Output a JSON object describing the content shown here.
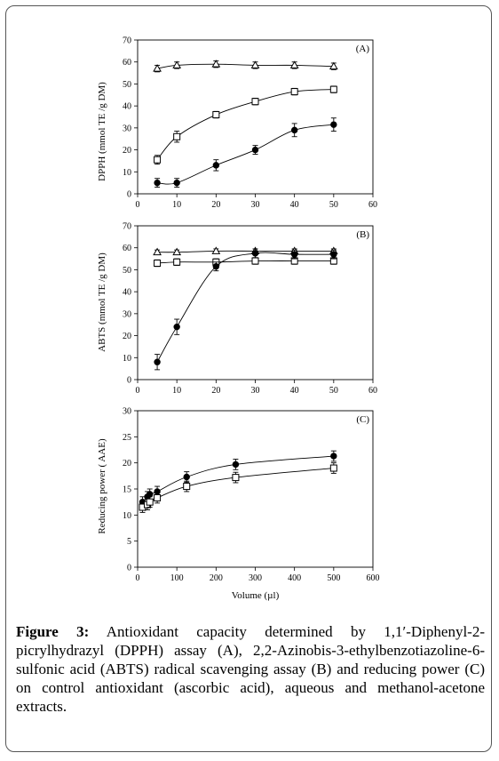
{
  "caption": {
    "label": "Figure 3:",
    "text": "Antioxidant capacity determined by 1,1′-Diphenyl-2-picrylhydrazyl (DPPH) assay (A), 2,2-Azinobis-3-ethylbenzotiazoline-6-sulfonic acid (ABTS) radical scavenging assay (B) and reducing power (C) on control antioxidant (ascorbic acid), aqueous and methanol-acetone extracts."
  },
  "chart_data": [
    {
      "type": "line",
      "panel_label": "(A)",
      "xlabel": "",
      "ylabel": "DPPH (mmol TE /g DM)",
      "xlim": [
        0,
        60
      ],
      "ylim": [
        0,
        70
      ],
      "xticks": [
        "0",
        "10",
        "20",
        "30",
        "40",
        "50",
        "60"
      ],
      "yticks": [
        "0",
        "10",
        "20",
        "30",
        "40",
        "50",
        "60",
        "70"
      ],
      "grid": false,
      "series": [
        {
          "marker": "triangle",
          "x": [
            5,
            10,
            20,
            30,
            40,
            50
          ],
          "y": [
            57,
            58.5,
            59,
            58.5,
            58.5,
            58
          ],
          "err": [
            1.5,
            1.5,
            1.5,
            1.5,
            1.5,
            1.5
          ]
        },
        {
          "marker": "square",
          "x": [
            5,
            10,
            20,
            30,
            40,
            50
          ],
          "y": [
            15.5,
            26,
            36,
            42,
            46.5,
            47.5
          ],
          "err": [
            2,
            2.5,
            1.5,
            1.5,
            1.5,
            1.5
          ]
        },
        {
          "marker": "circle",
          "x": [
            5,
            10,
            20,
            30,
            40,
            50
          ],
          "y": [
            5,
            5,
            13,
            20,
            29,
            31.5
          ],
          "err": [
            2,
            2,
            2.5,
            2,
            3,
            3
          ]
        }
      ]
    },
    {
      "type": "line",
      "panel_label": "(B)",
      "xlabel": "",
      "ylabel": "ABTS (mmol TE /g DM)",
      "xlim": [
        0,
        60
      ],
      "ylim": [
        0,
        70
      ],
      "xticks": [
        "0",
        "10",
        "20",
        "30",
        "40",
        "50",
        "60"
      ],
      "yticks": [
        "0",
        "10",
        "20",
        "30",
        "40",
        "50",
        "60",
        "70"
      ],
      "grid": false,
      "series": [
        {
          "marker": "triangle",
          "x": [
            5,
            10,
            20,
            30,
            40,
            50
          ],
          "y": [
            58,
            58,
            58.5,
            58.5,
            58.5,
            58.5
          ],
          "err": [
            1,
            1,
            1,
            1,
            1,
            1
          ]
        },
        {
          "marker": "square",
          "x": [
            5,
            10,
            20,
            30,
            40,
            50
          ],
          "y": [
            53,
            53.5,
            53.5,
            54,
            54,
            54
          ],
          "err": [
            1.5,
            1.5,
            1.5,
            1.5,
            1.5,
            1.5
          ]
        },
        {
          "marker": "circle",
          "x": [
            5,
            10,
            20,
            30,
            40,
            50
          ],
          "y": [
            8,
            24,
            51.5,
            57.5,
            57,
            57
          ],
          "err": [
            3.5,
            3.5,
            2,
            2,
            2,
            2
          ]
        }
      ]
    },
    {
      "type": "line",
      "panel_label": "(C)",
      "xlabel": "Volume  (µl)",
      "ylabel": "Reducing power  ( AAE)",
      "xlim": [
        0,
        600
      ],
      "ylim": [
        0,
        30
      ],
      "xticks": [
        "0",
        "100",
        "200",
        "300",
        "400",
        "500",
        "600"
      ],
      "yticks": [
        "0",
        "5",
        "10",
        "15",
        "20",
        "25",
        "30"
      ],
      "grid": false,
      "series": [
        {
          "marker": "circle",
          "x": [
            12.5,
            25,
            31,
            50,
            125,
            250,
            500
          ],
          "y": [
            12.5,
            13.5,
            14,
            14.5,
            17.3,
            19.7,
            21.3
          ],
          "err": [
            1,
            1,
            1,
            1,
            1,
            1,
            1
          ]
        },
        {
          "marker": "square",
          "x": [
            12.5,
            25,
            31,
            50,
            125,
            250,
            500
          ],
          "y": [
            11.5,
            12,
            12.5,
            13.3,
            15.5,
            17.2,
            19
          ],
          "err": [
            1,
            1,
            1,
            1,
            1,
            1,
            1
          ]
        }
      ]
    }
  ]
}
